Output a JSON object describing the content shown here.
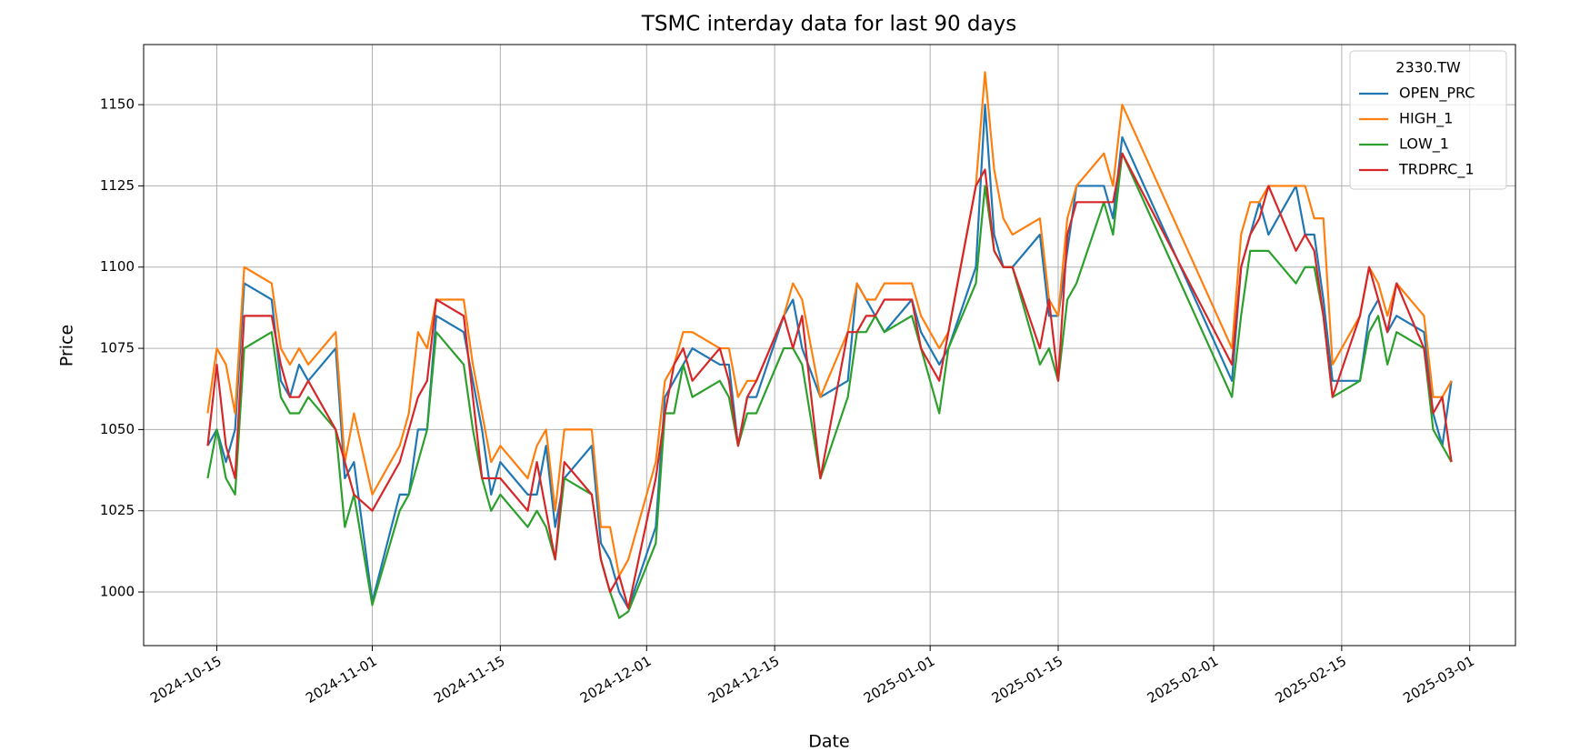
{
  "chart_data": {
    "type": "line",
    "title": "TSMC interday data for last 90 days",
    "x_label": "Date",
    "y_label": "Price",
    "legend_title": "2330.TW",
    "legend": "upper right",
    "grid": true,
    "x": [
      "2024-10-14",
      "2024-10-15",
      "2024-10-16",
      "2024-10-17",
      "2024-10-18",
      "2024-10-21",
      "2024-10-22",
      "2024-10-23",
      "2024-10-24",
      "2024-10-25",
      "2024-10-28",
      "2024-10-29",
      "2024-10-30",
      "2024-11-01",
      "2024-11-04",
      "2024-11-05",
      "2024-11-06",
      "2024-11-07",
      "2024-11-08",
      "2024-11-11",
      "2024-11-12",
      "2024-11-13",
      "2024-11-14",
      "2024-11-15",
      "2024-11-18",
      "2024-11-19",
      "2024-11-20",
      "2024-11-21",
      "2024-11-22",
      "2024-11-25",
      "2024-11-26",
      "2024-11-27",
      "2024-11-28",
      "2024-11-29",
      "2024-12-02",
      "2024-12-03",
      "2024-12-04",
      "2024-12-05",
      "2024-12-06",
      "2024-12-09",
      "2024-12-10",
      "2024-12-11",
      "2024-12-12",
      "2024-12-13",
      "2024-12-16",
      "2024-12-17",
      "2024-12-18",
      "2024-12-20",
      "2024-12-23",
      "2024-12-24",
      "2024-12-25",
      "2024-12-26",
      "2024-12-27",
      "2024-12-30",
      "2024-12-31",
      "2025-01-02",
      "2025-01-03",
      "2025-01-06",
      "2025-01-07",
      "2025-01-08",
      "2025-01-09",
      "2025-01-10",
      "2025-01-13",
      "2025-01-14",
      "2025-01-15",
      "2025-01-16",
      "2025-01-17",
      "2025-01-20",
      "2025-01-21",
      "2025-01-22",
      "2025-02-03",
      "2025-02-04",
      "2025-02-05",
      "2025-02-06",
      "2025-02-07",
      "2025-02-10",
      "2025-02-11",
      "2025-02-12",
      "2025-02-13",
      "2025-02-14",
      "2025-02-17",
      "2025-02-18",
      "2025-02-19",
      "2025-02-20",
      "2025-02-21",
      "2025-02-24",
      "2025-02-25",
      "2025-02-26",
      "2025-02-27"
    ],
    "series": [
      {
        "name": "OPEN_PRC",
        "color": "#1f77b4",
        "values": [
          1045,
          1050,
          1040,
          1050,
          1095,
          1090,
          1065,
          1060,
          1070,
          1065,
          1075,
          1035,
          1040,
          997,
          1030,
          1030,
          1050,
          1050,
          1085,
          1080,
          1065,
          1050,
          1030,
          1040,
          1030,
          1030,
          1045,
          1020,
          1035,
          1045,
          1015,
          1010,
          1000,
          995,
          1020,
          1060,
          1065,
          1070,
          1075,
          1070,
          1070,
          1045,
          1060,
          1060,
          1085,
          1090,
          1075,
          1060,
          1065,
          1095,
          1090,
          1085,
          1080,
          1090,
          1080,
          1070,
          1075,
          1100,
          1150,
          1110,
          1100,
          1100,
          1110,
          1085,
          1085,
          1105,
          1125,
          1125,
          1115,
          1140,
          1065,
          1100,
          1110,
          1120,
          1110,
          1125,
          1110,
          1110,
          1090,
          1065,
          1065,
          1085,
          1090,
          1080,
          1085,
          1080,
          1055,
          1045,
          1065
        ]
      },
      {
        "name": "HIGH_1",
        "color": "#ff7f0e",
        "values": [
          1055,
          1075,
          1070,
          1055,
          1100,
          1095,
          1075,
          1070,
          1075,
          1070,
          1080,
          1040,
          1055,
          1030,
          1045,
          1055,
          1080,
          1075,
          1090,
          1090,
          1070,
          1055,
          1040,
          1045,
          1035,
          1045,
          1050,
          1025,
          1050,
          1050,
          1020,
          1020,
          1005,
          1010,
          1040,
          1065,
          1070,
          1080,
          1080,
          1075,
          1075,
          1060,
          1065,
          1065,
          1085,
          1095,
          1090,
          1060,
          1080,
          1095,
          1090,
          1090,
          1095,
          1095,
          1085,
          1075,
          1080,
          1125,
          1160,
          1130,
          1115,
          1110,
          1115,
          1090,
          1085,
          1115,
          1125,
          1135,
          1125,
          1150,
          1075,
          1110,
          1120,
          1120,
          1125,
          1125,
          1125,
          1115,
          1115,
          1070,
          1085,
          1100,
          1095,
          1085,
          1095,
          1085,
          1060,
          1060,
          1065
        ]
      },
      {
        "name": "LOW_1",
        "color": "#2ca02c",
        "values": [
          1035,
          1050,
          1035,
          1030,
          1075,
          1080,
          1060,
          1055,
          1055,
          1060,
          1050,
          1020,
          1030,
          996,
          1025,
          1030,
          1040,
          1050,
          1080,
          1070,
          1050,
          1035,
          1025,
          1030,
          1020,
          1025,
          1020,
          1010,
          1035,
          1030,
          1010,
          1000,
          992,
          994,
          1015,
          1055,
          1055,
          1070,
          1060,
          1065,
          1060,
          1045,
          1055,
          1055,
          1075,
          1075,
          1070,
          1035,
          1060,
          1080,
          1080,
          1085,
          1080,
          1085,
          1075,
          1055,
          1075,
          1095,
          1125,
          1105,
          1100,
          1100,
          1070,
          1075,
          1065,
          1090,
          1095,
          1120,
          1110,
          1135,
          1060,
          1085,
          1105,
          1105,
          1105,
          1095,
          1100,
          1100,
          1085,
          1060,
          1065,
          1080,
          1085,
          1070,
          1080,
          1075,
          1050,
          1045,
          1040
        ]
      },
      {
        "name": "TRDPRC_1",
        "color": "#d62728",
        "values": [
          1045,
          1070,
          1045,
          1035,
          1085,
          1085,
          1070,
          1060,
          1060,
          1065,
          1050,
          1040,
          1030,
          1025,
          1040,
          1050,
          1060,
          1065,
          1090,
          1085,
          1060,
          1035,
          1035,
          1035,
          1025,
          1040,
          1025,
          1010,
          1040,
          1030,
          1010,
          1000,
          1005,
          995,
          1035,
          1055,
          1070,
          1075,
          1065,
          1075,
          1065,
          1045,
          1060,
          1065,
          1085,
          1075,
          1085,
          1035,
          1080,
          1080,
          1085,
          1085,
          1090,
          1090,
          1075,
          1065,
          1080,
          1125,
          1130,
          1105,
          1100,
          1100,
          1075,
          1090,
          1065,
          1110,
          1120,
          1120,
          1120,
          1135,
          1070,
          1100,
          1110,
          1115,
          1125,
          1105,
          1110,
          1105,
          1085,
          1060,
          1085,
          1100,
          1090,
          1080,
          1095,
          1075,
          1055,
          1060,
          1040
        ]
      }
    ],
    "xlim": [
      "2024-10-07",
      "2025-03-06"
    ],
    "xticks": [
      "2024-10-15",
      "2024-11-01",
      "2024-11-15",
      "2024-12-01",
      "2024-12-15",
      "2025-01-01",
      "2025-01-15",
      "2025-02-01",
      "2025-02-15",
      "2025-03-01"
    ],
    "ylim": [
      983.5,
      1168.5
    ],
    "yticks": [
      1000,
      1025,
      1050,
      1075,
      1100,
      1125,
      1150
    ]
  }
}
